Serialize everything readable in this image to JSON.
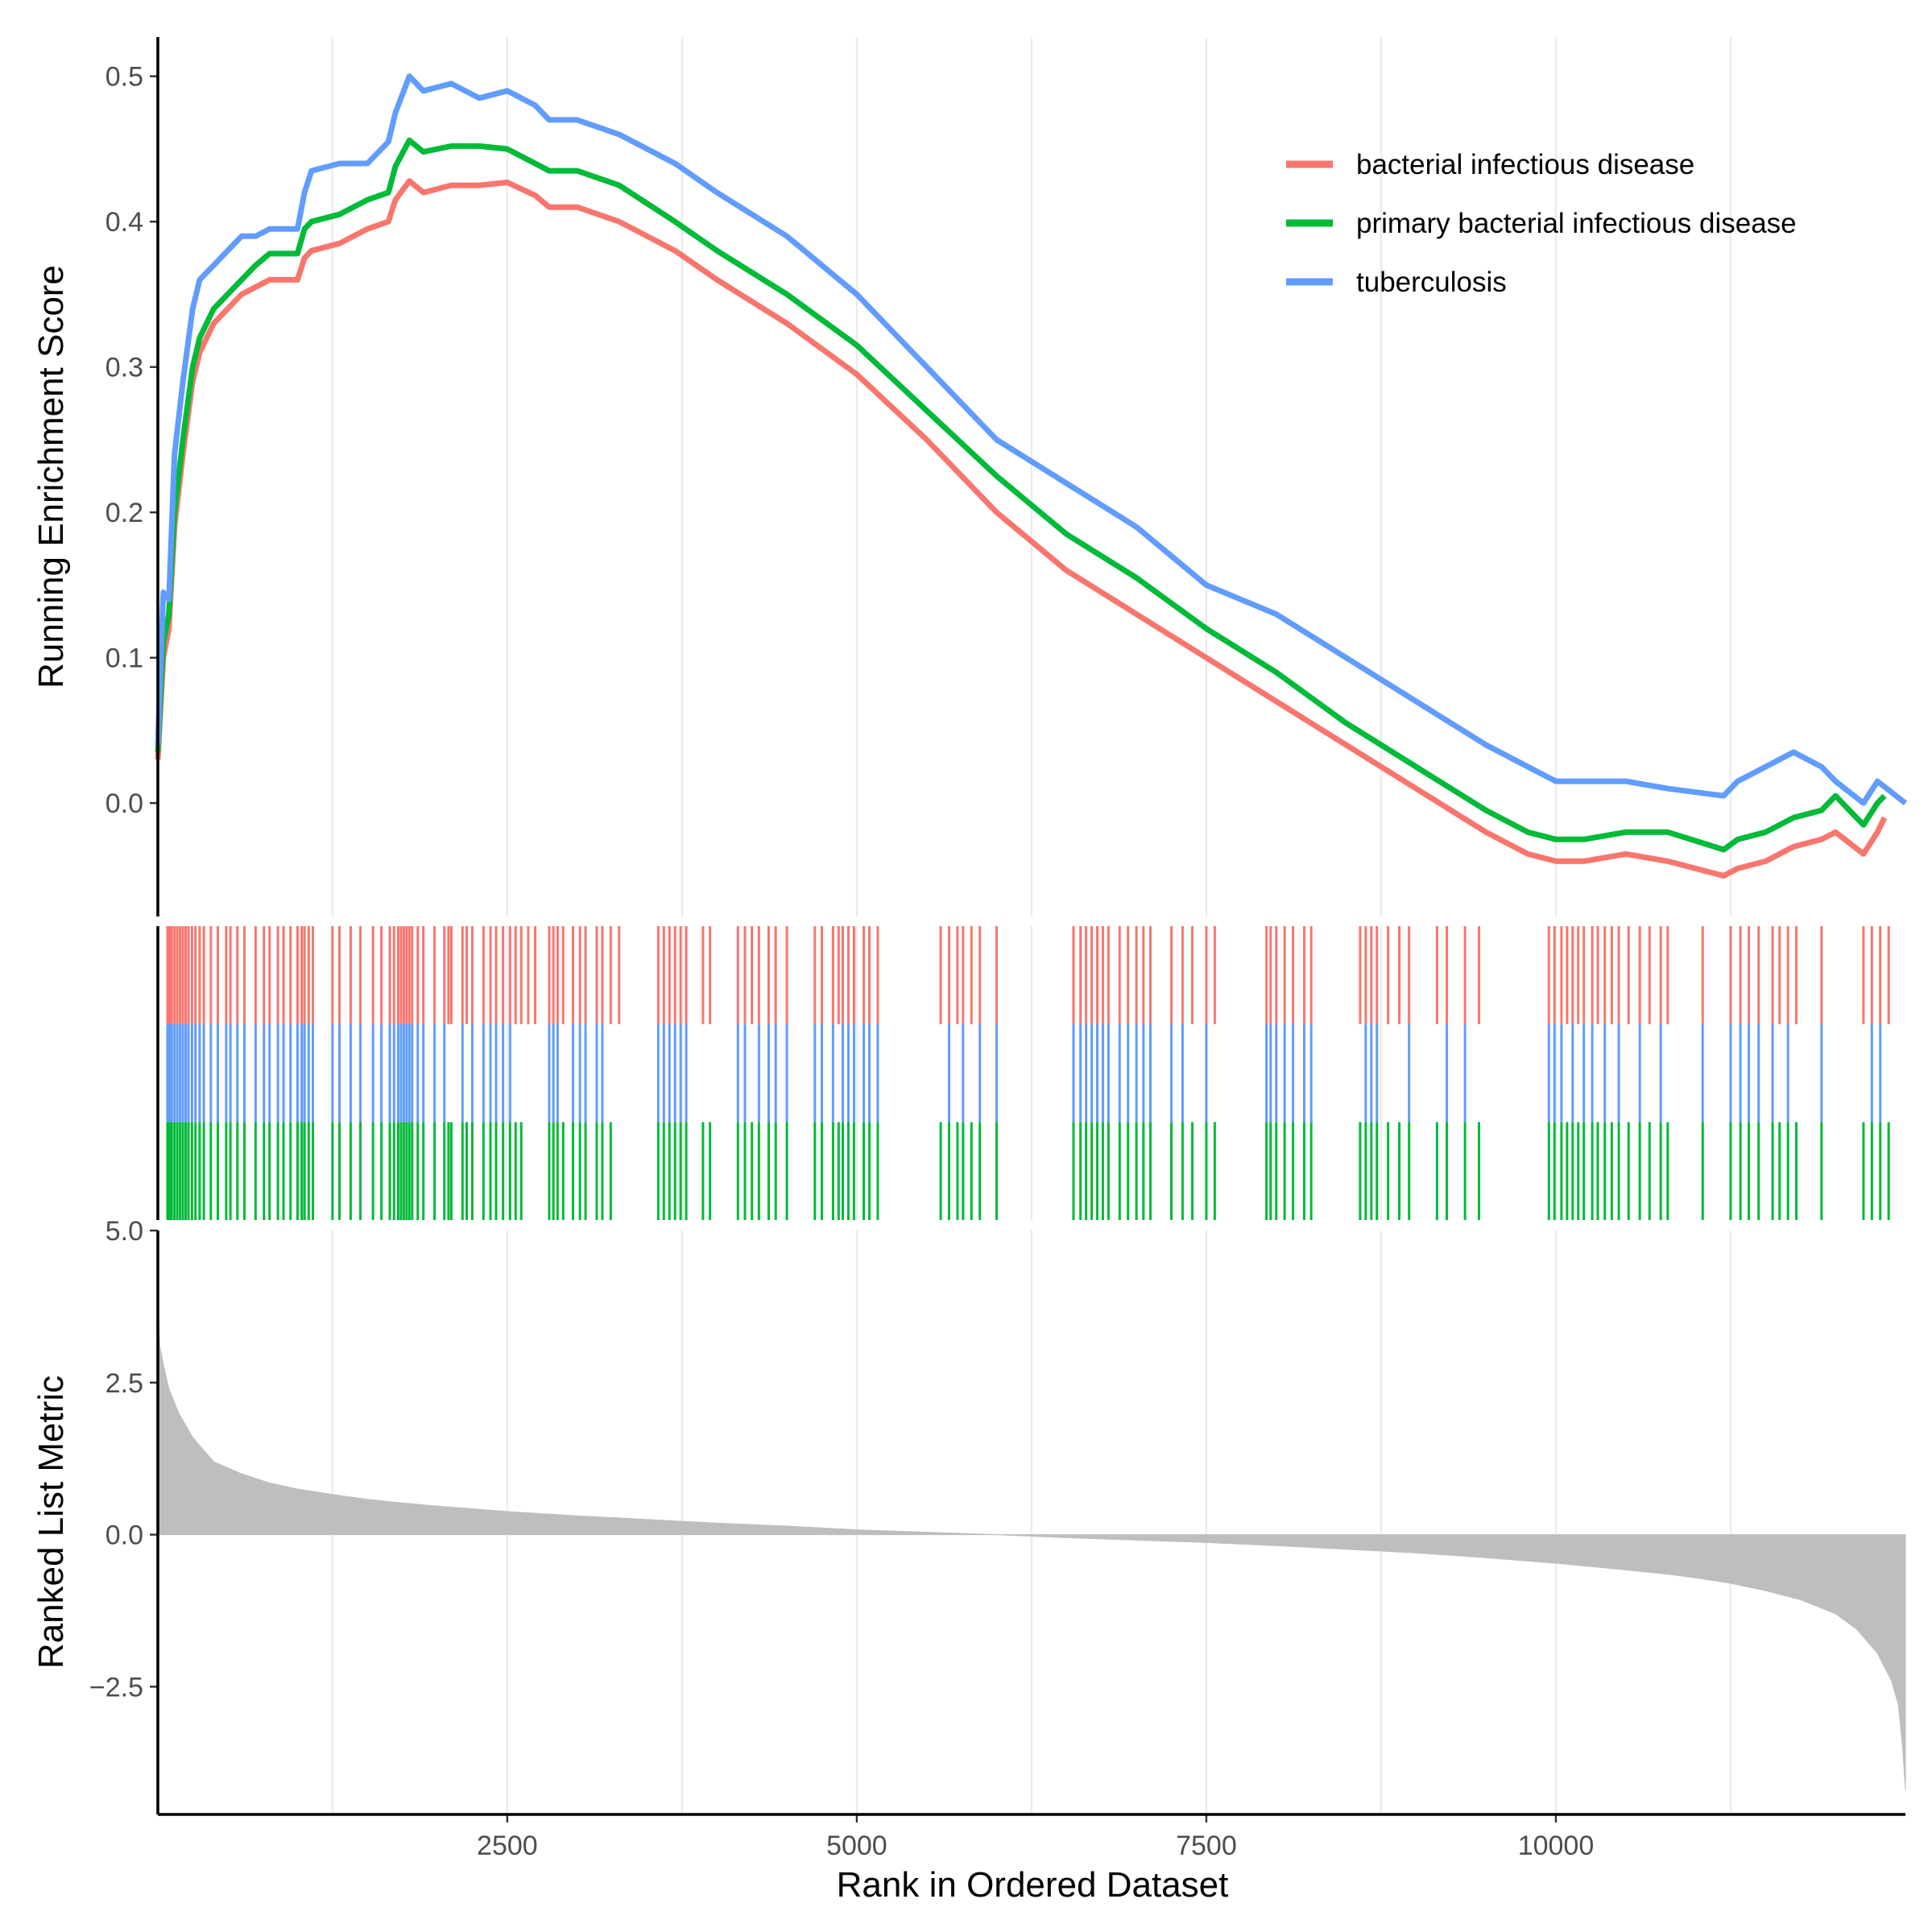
{
  "chart_data": {
    "type": "line",
    "xlabel": "Rank in Ordered Dataset",
    "x_ticks": [
      2500,
      5000,
      7500,
      10000
    ],
    "x_minor_gridlines": [
      1250,
      3750,
      6250,
      8750,
      11250
    ],
    "xlim": [
      1,
      12500
    ],
    "legend_position": "top-right",
    "panels": {
      "running_es": {
        "ylabel": "Running Enrichment Score",
        "ylim": [
          -0.078,
          0.527
        ],
        "y_ticks": [
          0.0,
          0.1,
          0.2,
          0.3,
          0.4,
          0.5
        ],
        "y_tick_labels": [
          "0.0",
          "0.1",
          "0.2",
          "0.3",
          "0.4",
          "0.5"
        ]
      },
      "ranked_metric": {
        "ylabel": "Ranked List Metric",
        "ylim": [
          -4.6,
          5.0
        ],
        "y_ticks": [
          5.0,
          2.5,
          0.0,
          -2.5
        ],
        "y_tick_labels": [
          "5.0",
          "2.5",
          "0.0",
          "−2.5"
        ],
        "fill_color": "#bebebe",
        "curve": {
          "x": [
            1,
            15,
            40,
            80,
            150,
            250,
            400,
            600,
            800,
            1000,
            1250,
            1500,
            1750,
            2000,
            2500,
            3000,
            3500,
            4000,
            4500,
            5000,
            5500,
            6000,
            6500,
            7000,
            7500,
            8000,
            8500,
            9000,
            9500,
            10000,
            10500,
            10800,
            11000,
            11250,
            11500,
            11750,
            12000,
            12150,
            12300,
            12400,
            12450,
            12480,
            12500
          ],
          "y": [
            3.8,
            3.1,
            2.8,
            2.4,
            2.0,
            1.6,
            1.2,
            1.0,
            0.85,
            0.75,
            0.66,
            0.58,
            0.52,
            0.47,
            0.38,
            0.31,
            0.25,
            0.19,
            0.14,
            0.08,
            0.04,
            0.0,
            -0.05,
            -0.09,
            -0.13,
            -0.18,
            -0.24,
            -0.3,
            -0.38,
            -0.47,
            -0.58,
            -0.65,
            -0.71,
            -0.8,
            -0.92,
            -1.07,
            -1.3,
            -1.55,
            -1.95,
            -2.4,
            -2.8,
            -3.5,
            -4.2
          ]
        }
      }
    },
    "series": [
      {
        "name": "bacterial infectious disease",
        "color": "#F8766D",
        "x": [
          1,
          40,
          80,
          120,
          180,
          250,
          300,
          400,
          500,
          600,
          700,
          800,
          1000,
          1050,
          1100,
          1300,
          1500,
          1650,
          1700,
          1800,
          1900,
          2100,
          2300,
          2500,
          2700,
          2800,
          3000,
          3300,
          3700,
          4000,
          4500,
          5000,
          5500,
          6000,
          6500,
          7000,
          7500,
          8000,
          8500,
          9000,
          9500,
          9800,
          10000,
          10200,
          10500,
          10800,
          11200,
          11300,
          11500,
          11700,
          11900,
          12000,
          12200,
          12300,
          12350
        ],
        "y": [
          0.03,
          0.1,
          0.12,
          0.19,
          0.24,
          0.29,
          0.31,
          0.33,
          0.34,
          0.35,
          0.355,
          0.36,
          0.36,
          0.375,
          0.38,
          0.385,
          0.395,
          0.4,
          0.415,
          0.428,
          0.42,
          0.425,
          0.425,
          0.427,
          0.418,
          0.41,
          0.41,
          0.4,
          0.38,
          0.36,
          0.33,
          0.295,
          0.25,
          0.2,
          0.16,
          0.13,
          0.1,
          0.07,
          0.04,
          0.01,
          -0.02,
          -0.035,
          -0.04,
          -0.04,
          -0.035,
          -0.04,
          -0.05,
          -0.045,
          -0.04,
          -0.03,
          -0.025,
          -0.02,
          -0.035,
          -0.02,
          -0.01
        ]
      },
      {
        "name": "primary bacterial infectious disease",
        "color": "#00BA38",
        "x": [
          1,
          40,
          80,
          120,
          180,
          250,
          300,
          400,
          500,
          600,
          700,
          800,
          1000,
          1050,
          1100,
          1300,
          1500,
          1650,
          1700,
          1800,
          1900,
          2100,
          2300,
          2500,
          2700,
          2800,
          3000,
          3300,
          3700,
          4000,
          4500,
          5000,
          5500,
          6000,
          6500,
          7000,
          7500,
          8000,
          8500,
          9000,
          9500,
          9800,
          10000,
          10200,
          10500,
          10800,
          11200,
          11300,
          11500,
          11700,
          11900,
          12000,
          12200,
          12300,
          12350
        ],
        "y": [
          0.035,
          0.11,
          0.13,
          0.2,
          0.25,
          0.3,
          0.32,
          0.34,
          0.35,
          0.36,
          0.37,
          0.378,
          0.378,
          0.395,
          0.4,
          0.405,
          0.415,
          0.42,
          0.438,
          0.456,
          0.448,
          0.452,
          0.452,
          0.45,
          0.44,
          0.435,
          0.435,
          0.425,
          0.4,
          0.38,
          0.35,
          0.315,
          0.27,
          0.225,
          0.185,
          0.155,
          0.12,
          0.09,
          0.055,
          0.025,
          -0.005,
          -0.02,
          -0.025,
          -0.025,
          -0.02,
          -0.02,
          -0.032,
          -0.025,
          -0.02,
          -0.01,
          -0.005,
          0.005,
          -0.015,
          0.0,
          0.005
        ]
      },
      {
        "name": "tuberculosis",
        "color": "#619CFF",
        "x": [
          1,
          40,
          80,
          120,
          180,
          250,
          300,
          400,
          500,
          600,
          700,
          800,
          1000,
          1050,
          1100,
          1300,
          1500,
          1650,
          1700,
          1800,
          1900,
          2100,
          2300,
          2500,
          2700,
          2800,
          3000,
          3300,
          3700,
          4000,
          4500,
          5000,
          5500,
          6000,
          6500,
          7000,
          7500,
          8000,
          8500,
          9000,
          9500,
          9800,
          10000,
          10200,
          10500,
          10800,
          11200,
          11300,
          11500,
          11700,
          11900,
          12000,
          12200,
          12300,
          12500
        ],
        "y": [
          0.04,
          0.145,
          0.14,
          0.24,
          0.29,
          0.34,
          0.36,
          0.37,
          0.38,
          0.39,
          0.39,
          0.395,
          0.395,
          0.42,
          0.435,
          0.44,
          0.44,
          0.455,
          0.475,
          0.5,
          0.49,
          0.495,
          0.485,
          0.49,
          0.48,
          0.47,
          0.47,
          0.46,
          0.44,
          0.42,
          0.39,
          0.35,
          0.3,
          0.25,
          0.22,
          0.19,
          0.15,
          0.13,
          0.1,
          0.07,
          0.04,
          0.025,
          0.015,
          0.015,
          0.015,
          0.01,
          0.005,
          0.015,
          0.025,
          0.035,
          0.025,
          0.015,
          0.0,
          0.015,
          0.0
        ]
      }
    ],
    "gene_hits": {
      "row_order": [
        "bacterial infectious disease",
        "tuberculosis",
        "primary bacterial infectious disease"
      ],
      "bacterial infectious disease": [
        70,
        85,
        100,
        120,
        140,
        160,
        180,
        200,
        220,
        245,
        270,
        300,
        330,
        380,
        430,
        490,
        520,
        570,
        620,
        700,
        760,
        800,
        860,
        900,
        950,
        1000,
        1030,
        1050,
        1080,
        1110,
        1250,
        1300,
        1380,
        1450,
        1540,
        1600,
        1660,
        1690,
        1720,
        1740,
        1760,
        1780,
        1800,
        1820,
        1860,
        1900,
        1980,
        2050,
        2080,
        2100,
        2180,
        2210,
        2250,
        2330,
        2380,
        2420,
        2470,
        2520,
        2560,
        2600,
        2650,
        2700,
        2800,
        2830,
        2860,
        2900,
        2970,
        3020,
        3060,
        3140,
        3180,
        3240,
        3300,
        3580,
        3620,
        3660,
        3700,
        3740,
        3780,
        3900,
        3950,
        4150,
        4200,
        4250,
        4300,
        4370,
        4420,
        4500,
        4700,
        4750,
        4830,
        4870,
        4900,
        4940,
        4980,
        5050,
        5090,
        5150,
        5600,
        5660,
        5720,
        5760,
        5820,
        5880,
        6000,
        6550,
        6600,
        6640,
        6680,
        6720,
        6760,
        6800,
        6880,
        6940,
        7000,
        7050,
        7100,
        7250,
        7330,
        7400,
        7500,
        7560,
        7930,
        7960,
        8000,
        8060,
        8120,
        8200,
        8250,
        8600,
        8640,
        8680,
        8720,
        8800,
        8880,
        8950,
        9150,
        9220,
        9350,
        9450,
        9950,
        9990,
        10040,
        10080,
        10120,
        10160,
        10200,
        10260,
        10300,
        10350,
        10400,
        10450,
        10520,
        10600,
        10670,
        10750,
        10800,
        11050,
        11250,
        11320,
        11380,
        11450,
        11550,
        11600,
        11660,
        11720,
        11900,
        12200,
        12260,
        12320,
        12380
      ],
      "tuberculosis": [
        70,
        85,
        100,
        120,
        140,
        160,
        180,
        200,
        220,
        245,
        270,
        300,
        330,
        380,
        430,
        490,
        520,
        570,
        620,
        700,
        760,
        800,
        860,
        900,
        950,
        1000,
        1030,
        1050,
        1080,
        1110,
        1250,
        1300,
        1380,
        1450,
        1540,
        1600,
        1660,
        1690,
        1720,
        1740,
        1760,
        1780,
        1800,
        1820,
        1860,
        1900,
        1980,
        2050,
        2180,
        2250,
        2330,
        2380,
        2420,
        2470,
        2520,
        2800,
        2830,
        2860,
        2970,
        3020,
        3060,
        3140,
        3180,
        3580,
        3620,
        3660,
        3700,
        3740,
        3780,
        4150,
        4200,
        4300,
        4370,
        4420,
        4500,
        4700,
        4750,
        4830,
        4900,
        4940,
        4980,
        5050,
        5090,
        5150,
        5660,
        5760,
        5880,
        6000,
        6550,
        6600,
        6640,
        6680,
        6720,
        6760,
        6800,
        6880,
        6940,
        7000,
        7050,
        7100,
        7250,
        7330,
        7500,
        7930,
        7960,
        8000,
        8060,
        8120,
        8200,
        8250,
        8640,
        8680,
        8720,
        8950,
        9220,
        9350,
        9950,
        9990,
        10040,
        10120,
        10200,
        10260,
        10350,
        10450,
        10600,
        10750,
        11050,
        11250,
        11320,
        11380,
        11450,
        11550,
        11660,
        11900,
        12260,
        12320
      ],
      "primary bacterial infectious disease": [
        70,
        85,
        100,
        120,
        140,
        160,
        180,
        200,
        220,
        245,
        270,
        300,
        330,
        380,
        430,
        490,
        520,
        570,
        620,
        700,
        760,
        800,
        860,
        900,
        950,
        1000,
        1030,
        1050,
        1080,
        1110,
        1250,
        1300,
        1380,
        1450,
        1540,
        1600,
        1660,
        1690,
        1720,
        1740,
        1760,
        1780,
        1800,
        1820,
        1860,
        1900,
        1980,
        2050,
        2080,
        2100,
        2180,
        2210,
        2250,
        2330,
        2380,
        2420,
        2470,
        2520,
        2560,
        2600,
        2800,
        2830,
        2860,
        2900,
        2970,
        3020,
        3060,
        3140,
        3180,
        3240,
        3580,
        3620,
        3660,
        3700,
        3740,
        3780,
        3900,
        3950,
        4150,
        4200,
        4250,
        4300,
        4370,
        4420,
        4500,
        4700,
        4750,
        4830,
        4870,
        4900,
        4940,
        4980,
        5050,
        5090,
        5150,
        5600,
        5660,
        5720,
        5760,
        5820,
        5880,
        6000,
        6550,
        6600,
        6640,
        6680,
        6720,
        6760,
        6800,
        6880,
        6940,
        7000,
        7050,
        7100,
        7250,
        7330,
        7400,
        7500,
        7560,
        7930,
        7960,
        8000,
        8060,
        8120,
        8200,
        8250,
        8600,
        8640,
        8680,
        8720,
        8800,
        8880,
        8950,
        9150,
        9220,
        9350,
        9450,
        9950,
        9990,
        10040,
        10080,
        10120,
        10160,
        10200,
        10260,
        10300,
        10350,
        10400,
        10450,
        10520,
        10600,
        10670,
        10750,
        10800,
        11050,
        11250,
        11320,
        11380,
        11450,
        11550,
        11600,
        11660,
        11720,
        11900,
        12200,
        12260,
        12320,
        12380
      ]
    }
  }
}
